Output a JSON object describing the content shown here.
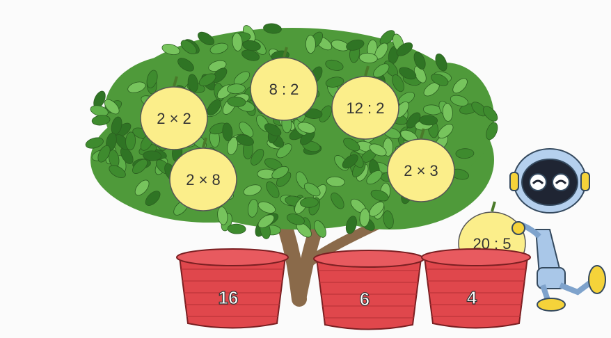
{
  "fruits": [
    {
      "label": "2 × 2"
    },
    {
      "label": "8 : 2"
    },
    {
      "label": "12 : 2"
    },
    {
      "label": "2 × 8"
    },
    {
      "label": "2 × 3"
    },
    {
      "label": "20 : 5"
    }
  ],
  "baskets": [
    {
      "label": "16"
    },
    {
      "label": "6"
    },
    {
      "label": "4"
    }
  ]
}
